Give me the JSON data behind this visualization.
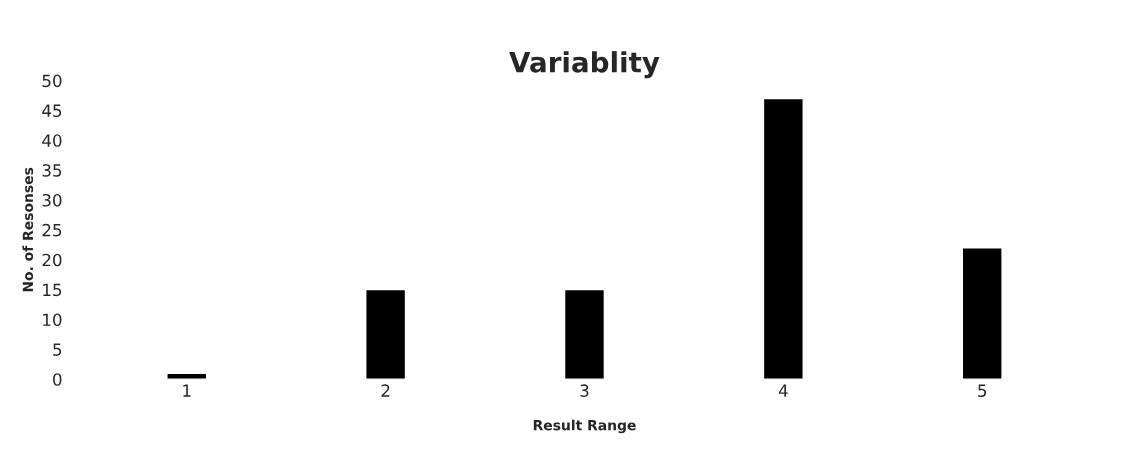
{
  "chart_data": {
    "type": "bar",
    "title": "Variablity",
    "xlabel": "Result Range",
    "ylabel": "No. of Resonses",
    "categories": [
      "1",
      "2",
      "3",
      "4",
      "5"
    ],
    "values": [
      1,
      15,
      15,
      47,
      22
    ],
    "color": "#000000",
    "ylim": [
      0,
      50
    ],
    "yticks": [
      0,
      5,
      10,
      15,
      20,
      25,
      30,
      35,
      40,
      45,
      50
    ],
    "grid": false,
    "legend": false
  }
}
